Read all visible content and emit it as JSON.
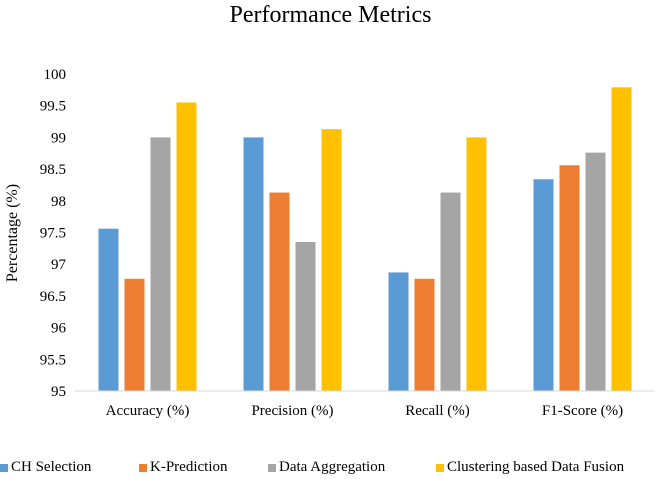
{
  "chart_data": {
    "type": "bar",
    "title": "Performance Metrics",
    "xlabel": "",
    "ylabel": "Percentage (%)",
    "ylim": [
      95,
      100
    ],
    "yticks": [
      "95",
      "95.5",
      "96",
      "96.5",
      "97",
      "97.5",
      "98",
      "98.5",
      "99",
      "99.5",
      "100"
    ],
    "categories": [
      "Accuracy (%)",
      "Precision (%)",
      "Recall (%)",
      "F1-Score (%)"
    ],
    "series": [
      {
        "name": "CH Selection",
        "color": "#5B9BD5",
        "values": [
          97.56,
          99.0,
          96.87,
          98.34
        ]
      },
      {
        "name": "K-Prediction",
        "color": "#ED7D31",
        "values": [
          96.77,
          98.13,
          96.77,
          98.56
        ]
      },
      {
        "name": "Data Aggregation",
        "color": "#A5A5A5",
        "values": [
          99.0,
          97.35,
          98.13,
          98.76
        ]
      },
      {
        "name": "Clustering based Data Fusion",
        "color": "#FFC000",
        "values": [
          99.55,
          99.13,
          99.0,
          99.79
        ]
      }
    ],
    "grid": false,
    "legend_position": "bottom"
  }
}
